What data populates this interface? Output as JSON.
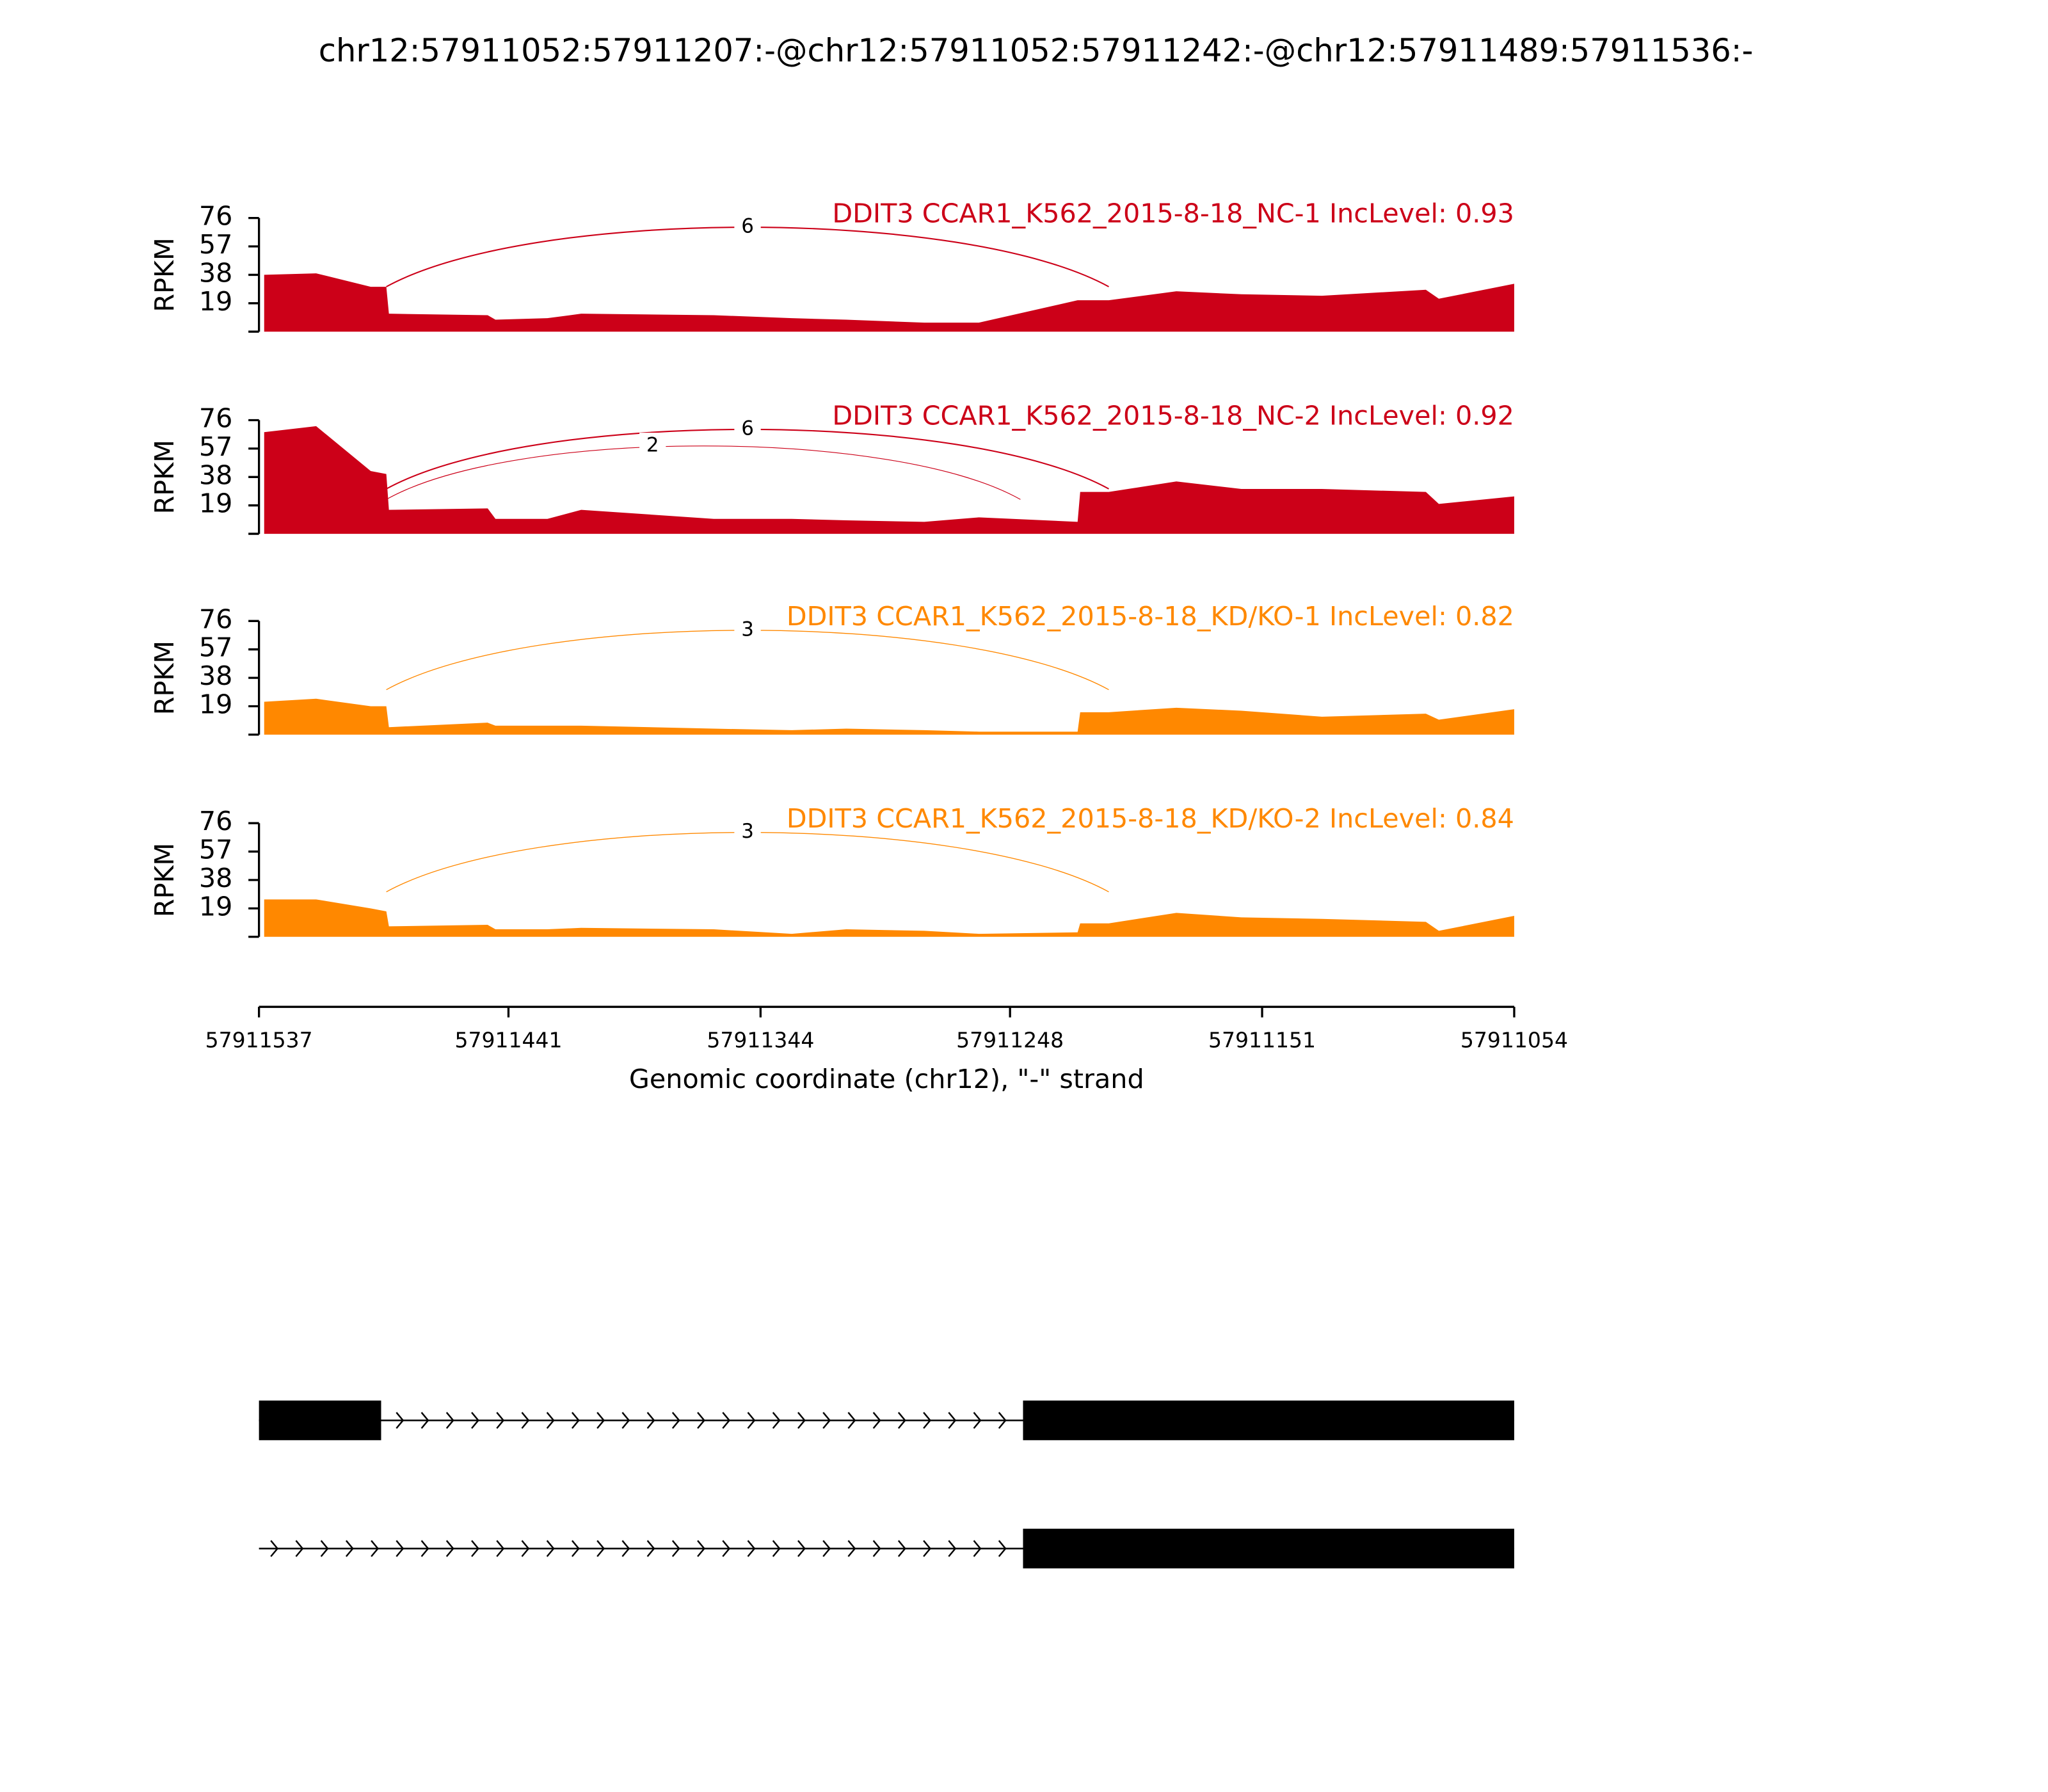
{
  "title": "chr12:57911052:57911207:-@chr12:57911052:57911242:-@chr12:57911489:57911536:-",
  "chart_data": [
    {
      "type": "area",
      "title": "DDIT3 CCAR1_K562_2015-8-18_NC-1 IncLevel: 0.93",
      "ylabel": "RPKM",
      "color": "#cc0018",
      "x": [
        57911535,
        57911515,
        57911494,
        57911488,
        57911487,
        57911449,
        57911446,
        57911426,
        57911413,
        57911362,
        57911332,
        57911311,
        57911281,
        57911260,
        57911222,
        57911221,
        57911210,
        57911184,
        57911159,
        57911128,
        57911088,
        57911083,
        57911054
      ],
      "values": [
        38,
        39,
        30,
        30,
        12,
        11,
        8,
        9,
        12,
        11,
        9,
        8,
        6,
        6,
        21,
        21,
        21,
        27,
        25,
        24,
        28,
        22,
        32
      ],
      "ylim": [
        0,
        76
      ],
      "yticks": [
        19,
        38,
        57,
        76
      ],
      "junctions": [
        {
          "start": 57911488,
          "end": 57911210,
          "count": 6
        }
      ]
    },
    {
      "type": "area",
      "title": "DDIT3 CCAR1_K562_2015-8-18_NC-2 IncLevel: 0.92",
      "ylabel": "RPKM",
      "color": "#cc0018",
      "x": [
        57911535,
        57911515,
        57911494,
        57911488,
        57911487,
        57911449,
        57911446,
        57911426,
        57911413,
        57911362,
        57911332,
        57911311,
        57911281,
        57911260,
        57911222,
        57911221,
        57911210,
        57911184,
        57911159,
        57911128,
        57911088,
        57911083,
        57911054
      ],
      "values": [
        68,
        72,
        42,
        40,
        16,
        17,
        10,
        10,
        16,
        10,
        10,
        9,
        8,
        11,
        8,
        28,
        28,
        35,
        30,
        30,
        28,
        20,
        25
      ],
      "ylim": [
        0,
        76
      ],
      "yticks": [
        19,
        38,
        57,
        76
      ],
      "junctions": [
        {
          "start": 57911488,
          "end": 57911210,
          "count": 6
        },
        {
          "start": 57911488,
          "end": 57911244,
          "count": 2
        }
      ]
    },
    {
      "type": "area",
      "title": "DDIT3 CCAR1_K562_2015-8-18_KD/KO-1 IncLevel: 0.82",
      "ylabel": "RPKM",
      "color": "#ff8800",
      "x": [
        57911535,
        57911515,
        57911494,
        57911488,
        57911487,
        57911449,
        57911446,
        57911426,
        57911413,
        57911362,
        57911332,
        57911311,
        57911281,
        57911260,
        57911222,
        57911221,
        57911210,
        57911184,
        57911159,
        57911128,
        57911088,
        57911083,
        57911054
      ],
      "values": [
        22,
        24,
        19,
        19,
        5,
        8,
        6,
        6,
        6,
        4,
        3,
        4,
        3,
        2,
        2,
        15,
        15,
        18,
        16,
        12,
        14,
        10,
        17
      ],
      "ylim": [
        0,
        76
      ],
      "yticks": [
        19,
        38,
        57,
        76
      ],
      "junctions": [
        {
          "start": 57911488,
          "end": 57911210,
          "count": 3
        }
      ]
    },
    {
      "type": "area",
      "title": "DDIT3 CCAR1_K562_2015-8-18_KD/KO-2 IncLevel: 0.84",
      "ylabel": "RPKM",
      "color": "#ff8800",
      "x": [
        57911535,
        57911515,
        57911494,
        57911488,
        57911487,
        57911449,
        57911446,
        57911426,
        57911413,
        57911362,
        57911332,
        57911311,
        57911281,
        57911260,
        57911222,
        57911221,
        57911210,
        57911184,
        57911159,
        57911128,
        57911088,
        57911083,
        57911054
      ],
      "values": [
        25,
        25,
        19,
        17,
        7,
        8,
        5,
        5,
        6,
        5,
        2,
        5,
        4,
        2,
        3,
        9,
        9,
        16,
        13,
        12,
        10,
        4,
        14
      ],
      "ylim": [
        0,
        76
      ],
      "yticks": [
        19,
        38,
        57,
        76
      ],
      "junctions": [
        {
          "start": 57911488,
          "end": 57911210,
          "count": 3
        }
      ]
    },
    {
      "type": "gene_model",
      "xlabel": "Genomic coordinate (chr12), \"-\" strand",
      "xlim": [
        57911537,
        57911054
      ],
      "xticks": [
        57911537,
        57911441,
        57911344,
        57911248,
        57911151,
        57911054
      ],
      "transcripts": [
        {
          "start": 57911537,
          "exons": [
            [
              57911537,
              57911490
            ],
            [
              57911243,
              57911054
            ]
          ]
        },
        {
          "start": 57911537,
          "exons": [
            [
              57911243,
              57911054
            ]
          ]
        }
      ]
    }
  ]
}
